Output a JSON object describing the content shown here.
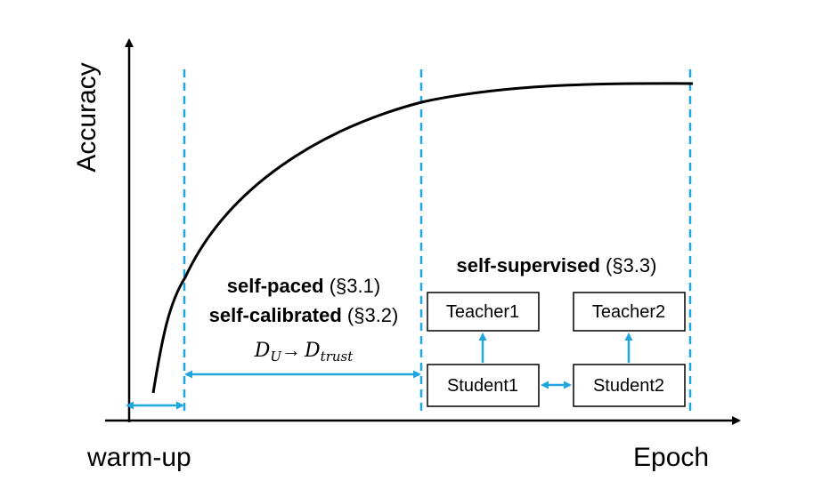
{
  "axes": {
    "y_label": "Accuracy",
    "x_label": "Epoch",
    "x_start_label": "warm-up"
  },
  "phase1": {
    "line1_bold": "self-paced",
    "line1_ref": " (§3.1)",
    "line2_bold": "self-calibrated",
    "line2_ref": " (§3.2)",
    "data_from": "D",
    "data_from_sub": "U",
    "arrow_glyph": "→",
    "data_to": "D",
    "data_to_sub": "trust"
  },
  "phase2": {
    "title_bold": "self-supervised",
    "title_ref": " (§3.3)",
    "teacher1": "Teacher1",
    "teacher2": "Teacher2",
    "student1": "Student1",
    "student2": "Student2"
  },
  "colors": {
    "accent": "#1fa6e0",
    "axis": "#000000",
    "curve": "#000000"
  }
}
